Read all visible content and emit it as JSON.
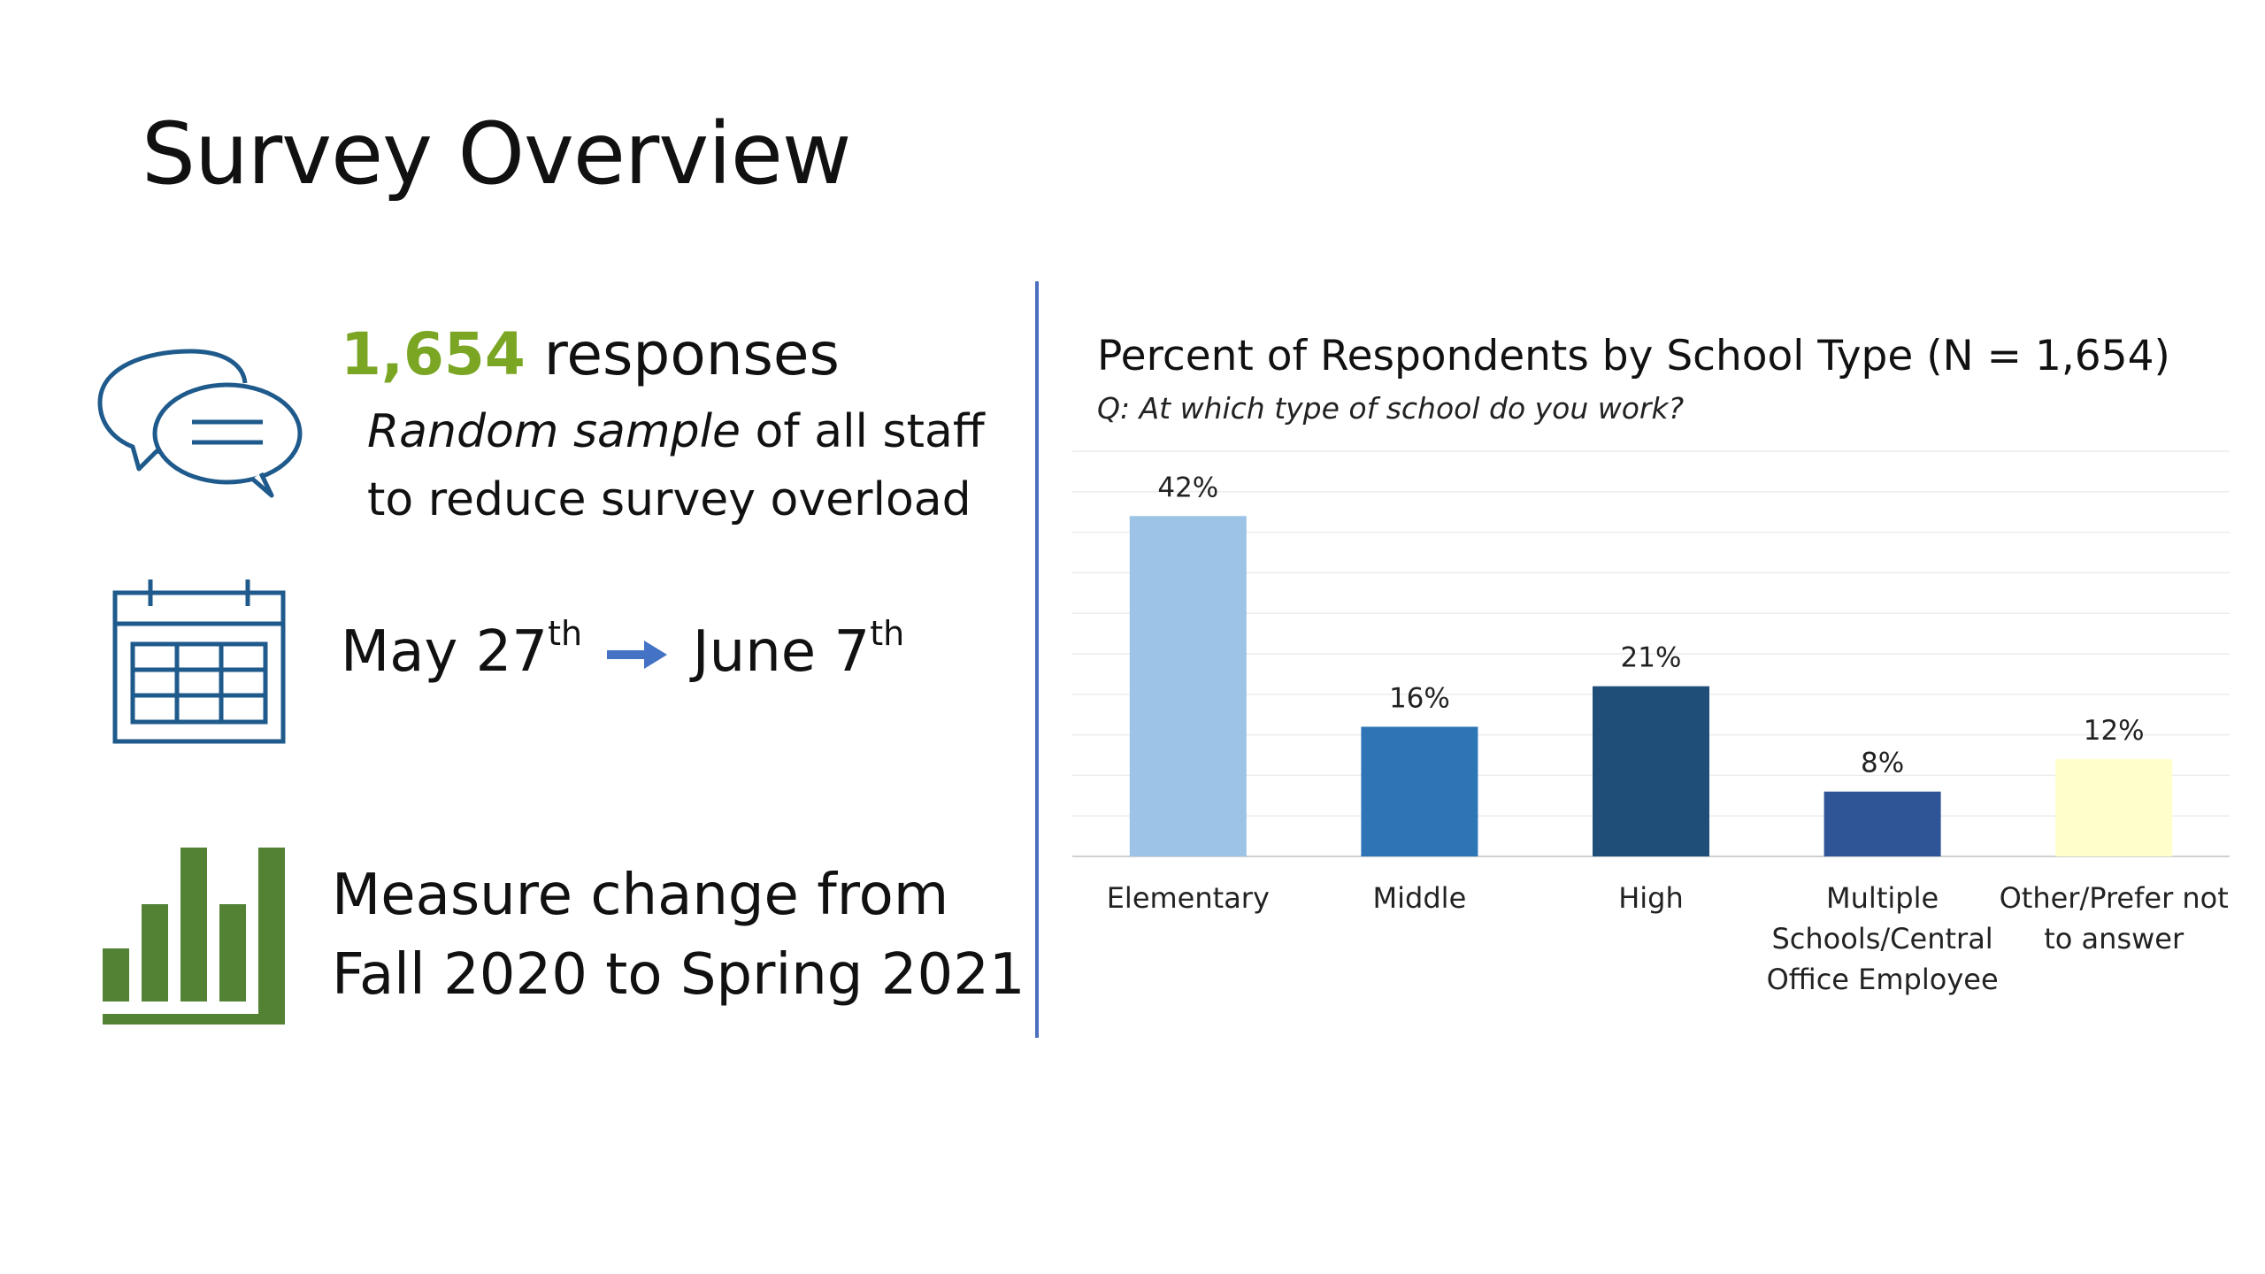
{
  "slide": {
    "title": "Survey Overview"
  },
  "left_panel": {
    "responses": {
      "count": "1,654",
      "count_label": " responses",
      "line2_italic": "Random sample",
      "line2_rest": " of all staff",
      "line3": "to reduce survey overload",
      "icon": "chat-bubbles-icon"
    },
    "dates": {
      "start": "May 27",
      "start_sup": "th",
      "end": "June 7",
      "end_sup": "th",
      "icon": "calendar-icon",
      "arrow_icon": "arrow-right-icon"
    },
    "measure": {
      "line1": "Measure change from",
      "line2": "Fall 2020 to Spring 2021",
      "icon": "bar-chart-icon"
    }
  },
  "colors": {
    "accent_green": "#7aa624",
    "icon_blue": "#1f5a8c",
    "icon_green": "#548235",
    "divider": "#4a6fbf",
    "arrow": "#4472c4"
  },
  "chart_data": {
    "type": "bar",
    "title": "Percent of Respondents by School Type (N = 1,654)",
    "subtitle": "Q: At which type of school do you work?",
    "categories": [
      [
        "Elementary"
      ],
      [
        "Middle"
      ],
      [
        "High"
      ],
      [
        "Multiple",
        "Schools/Central",
        "Office Employee"
      ],
      [
        "Other/Prefer not",
        "to answer"
      ]
    ],
    "values": [
      42,
      16,
      21,
      8,
      12
    ],
    "value_labels": [
      "42%",
      "16%",
      "21%",
      "8%",
      "12%"
    ],
    "bar_colors": [
      "#9dc3e6",
      "#2e75b6",
      "#1f4e79",
      "#2f5597",
      "#ffffcc"
    ],
    "ylim": [
      0,
      50
    ],
    "grid": true,
    "legend": "none"
  }
}
